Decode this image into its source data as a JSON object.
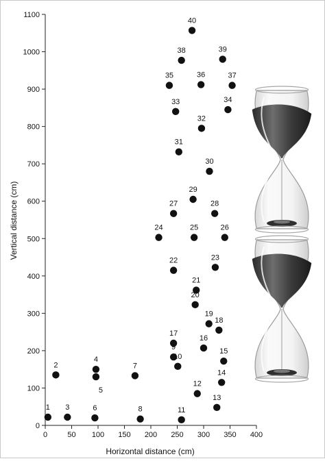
{
  "chart_data": {
    "type": "scatter",
    "title": "",
    "xlabel": "Horizontal distance (cm)",
    "ylabel": "Vertical distance (cm)",
    "xlim": [
      0,
      400
    ],
    "ylim": [
      0,
      1100
    ],
    "xticks": [
      0,
      50,
      100,
      150,
      200,
      250,
      300,
      350,
      400
    ],
    "yticks": [
      0,
      100,
      200,
      300,
      400,
      500,
      600,
      700,
      800,
      900,
      1000,
      1100
    ],
    "grid": false,
    "legend": "none",
    "marker_color": "#111111",
    "decoration_icons": [
      "hourglass-icon",
      "hourglass-icon"
    ],
    "points": [
      {
        "label": "1",
        "x": 5,
        "y": 22
      },
      {
        "label": "2",
        "x": 20,
        "y": 135
      },
      {
        "label": "3",
        "x": 42,
        "y": 22
      },
      {
        "label": "4",
        "x": 96,
        "y": 150
      },
      {
        "label": "5",
        "x": 96,
        "y": 130
      },
      {
        "label": "6",
        "x": 94,
        "y": 20
      },
      {
        "label": "7",
        "x": 170,
        "y": 133
      },
      {
        "label": "8",
        "x": 180,
        "y": 17
      },
      {
        "label": "9",
        "x": 243,
        "y": 183
      },
      {
        "label": "10",
        "x": 251,
        "y": 158
      },
      {
        "label": "11",
        "x": 258,
        "y": 15
      },
      {
        "label": "12",
        "x": 288,
        "y": 85
      },
      {
        "label": "13",
        "x": 325,
        "y": 48
      },
      {
        "label": "14",
        "x": 334,
        "y": 115
      },
      {
        "label": "15",
        "x": 338,
        "y": 172
      },
      {
        "label": "16",
        "x": 300,
        "y": 207
      },
      {
        "label": "17",
        "x": 243,
        "y": 220
      },
      {
        "label": "18",
        "x": 329,
        "y": 255
      },
      {
        "label": "19",
        "x": 310,
        "y": 272
      },
      {
        "label": "20",
        "x": 284,
        "y": 323
      },
      {
        "label": "21",
        "x": 286,
        "y": 362
      },
      {
        "label": "22",
        "x": 243,
        "y": 415
      },
      {
        "label": "23",
        "x": 322,
        "y": 423
      },
      {
        "label": "24",
        "x": 215,
        "y": 503
      },
      {
        "label": "25",
        "x": 282,
        "y": 503
      },
      {
        "label": "26",
        "x": 340,
        "y": 503
      },
      {
        "label": "27",
        "x": 243,
        "y": 567
      },
      {
        "label": "28",
        "x": 321,
        "y": 567
      },
      {
        "label": "29",
        "x": 280,
        "y": 605
      },
      {
        "label": "30",
        "x": 311,
        "y": 680
      },
      {
        "label": "31",
        "x": 253,
        "y": 732
      },
      {
        "label": "32",
        "x": 296,
        "y": 795
      },
      {
        "label": "33",
        "x": 247,
        "y": 840
      },
      {
        "label": "34",
        "x": 346,
        "y": 845
      },
      {
        "label": "35",
        "x": 235,
        "y": 910
      },
      {
        "label": "36",
        "x": 295,
        "y": 912
      },
      {
        "label": "37",
        "x": 354,
        "y": 910
      },
      {
        "label": "38",
        "x": 258,
        "y": 977
      },
      {
        "label": "39",
        "x": 336,
        "y": 980
      },
      {
        "label": "40",
        "x": 278,
        "y": 1057
      }
    ]
  }
}
